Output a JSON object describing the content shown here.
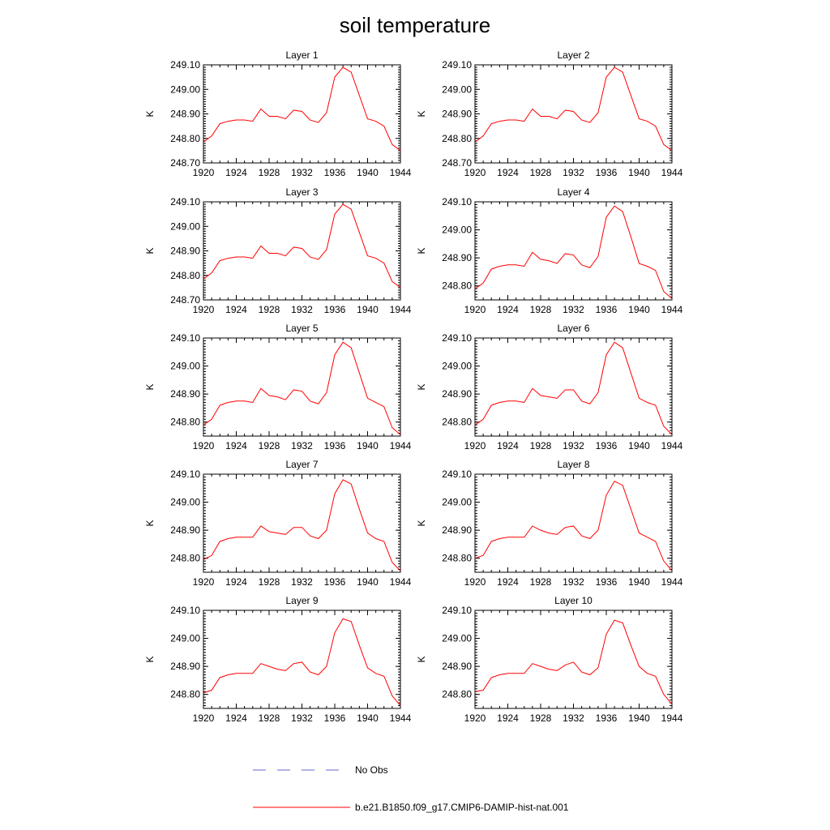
{
  "title": "soil temperature",
  "colors": {
    "model": "#ff0000",
    "obs": "#6666cc"
  },
  "legend": [
    {
      "label": "No Obs",
      "style": "dashed",
      "color": "#6666cc"
    },
    {
      "label": "b.e21.B1850.f09_g17.CMIP6-DAMIP-hist-nat.001",
      "style": "solid",
      "color": "#ff0000"
    }
  ],
  "chart_data": [
    {
      "type": "line",
      "title": "Layer 1",
      "xlabel": "",
      "ylabel": "K",
      "xlim": [
        1920,
        1944
      ],
      "ylim": [
        248.7,
        249.1
      ],
      "yticks": [
        "249.10",
        "249.00",
        "248.90",
        "248.80",
        "248.70"
      ],
      "xticks": [
        "1920",
        "1924",
        "1928",
        "1932",
        "1936",
        "1940",
        "1944"
      ],
      "series": [
        {
          "x": [
            1920,
            1921,
            1922,
            1923,
            1924,
            1925,
            1926,
            1927,
            1928,
            1929,
            1930,
            1931,
            1932,
            1933,
            1934,
            1935,
            1936,
            1937,
            1938,
            1939,
            1940,
            1941,
            1942,
            1943,
            1944
          ],
          "values": [
            248.785,
            248.81,
            248.86,
            248.87,
            248.875,
            248.875,
            248.87,
            248.92,
            248.89,
            248.89,
            248.88,
            248.915,
            248.91,
            248.875,
            248.865,
            248.905,
            249.05,
            249.09,
            249.07,
            248.975,
            248.88,
            248.87,
            248.85,
            248.775,
            248.75
          ]
        }
      ]
    },
    {
      "type": "line",
      "title": "Layer 2",
      "xlabel": "",
      "ylabel": "K",
      "xlim": [
        1920,
        1944
      ],
      "ylim": [
        248.7,
        249.1
      ],
      "yticks": [
        "249.10",
        "249.00",
        "248.90",
        "248.80",
        "248.70"
      ],
      "xticks": [
        "1920",
        "1924",
        "1928",
        "1932",
        "1936",
        "1940",
        "1944"
      ],
      "series": [
        {
          "x": [
            1920,
            1921,
            1922,
            1923,
            1924,
            1925,
            1926,
            1927,
            1928,
            1929,
            1930,
            1931,
            1932,
            1933,
            1934,
            1935,
            1936,
            1937,
            1938,
            1939,
            1940,
            1941,
            1942,
            1943,
            1944
          ],
          "values": [
            248.785,
            248.81,
            248.86,
            248.87,
            248.875,
            248.875,
            248.87,
            248.92,
            248.89,
            248.89,
            248.88,
            248.915,
            248.91,
            248.875,
            248.865,
            248.905,
            249.05,
            249.09,
            249.07,
            248.975,
            248.88,
            248.87,
            248.85,
            248.775,
            248.75
          ]
        }
      ]
    },
    {
      "type": "line",
      "title": "Layer 3",
      "xlabel": "",
      "ylabel": "K",
      "xlim": [
        1920,
        1944
      ],
      "ylim": [
        248.7,
        249.1
      ],
      "yticks": [
        "249.10",
        "249.00",
        "248.90",
        "248.80",
        "248.70"
      ],
      "xticks": [
        "1920",
        "1924",
        "1928",
        "1932",
        "1936",
        "1940",
        "1944"
      ],
      "series": [
        {
          "x": [
            1920,
            1921,
            1922,
            1923,
            1924,
            1925,
            1926,
            1927,
            1928,
            1929,
            1930,
            1931,
            1932,
            1933,
            1934,
            1935,
            1936,
            1937,
            1938,
            1939,
            1940,
            1941,
            1942,
            1943,
            1944
          ],
          "values": [
            248.785,
            248.81,
            248.86,
            248.87,
            248.875,
            248.875,
            248.87,
            248.92,
            248.89,
            248.89,
            248.88,
            248.915,
            248.91,
            248.875,
            248.865,
            248.905,
            249.05,
            249.09,
            249.07,
            248.975,
            248.88,
            248.87,
            248.85,
            248.775,
            248.75
          ]
        }
      ]
    },
    {
      "type": "line",
      "title": "Layer 4",
      "xlabel": "",
      "ylabel": "K",
      "xlim": [
        1920,
        1944
      ],
      "ylim": [
        248.75,
        249.1
      ],
      "yticks": [
        "249.10",
        "249.00",
        "248.90",
        "248.80"
      ],
      "xticks": [
        "1920",
        "1924",
        "1928",
        "1932",
        "1936",
        "1940",
        "1944"
      ],
      "series": [
        {
          "x": [
            1920,
            1921,
            1922,
            1923,
            1924,
            1925,
            1926,
            1927,
            1928,
            1929,
            1930,
            1931,
            1932,
            1933,
            1934,
            1935,
            1936,
            1937,
            1938,
            1939,
            1940,
            1941,
            1942,
            1943,
            1944
          ],
          "values": [
            248.79,
            248.81,
            248.86,
            248.87,
            248.875,
            248.875,
            248.87,
            248.92,
            248.895,
            248.89,
            248.88,
            248.915,
            248.91,
            248.875,
            248.865,
            248.905,
            249.045,
            249.085,
            249.065,
            248.975,
            248.88,
            248.87,
            248.855,
            248.78,
            248.755
          ]
        }
      ]
    },
    {
      "type": "line",
      "title": "Layer 5",
      "xlabel": "",
      "ylabel": "K",
      "xlim": [
        1920,
        1944
      ],
      "ylim": [
        248.75,
        249.1
      ],
      "yticks": [
        "249.10",
        "249.00",
        "248.90",
        "248.80"
      ],
      "xticks": [
        "1920",
        "1924",
        "1928",
        "1932",
        "1936",
        "1940",
        "1944"
      ],
      "series": [
        {
          "x": [
            1920,
            1921,
            1922,
            1923,
            1924,
            1925,
            1926,
            1927,
            1928,
            1929,
            1930,
            1931,
            1932,
            1933,
            1934,
            1935,
            1936,
            1937,
            1938,
            1939,
            1940,
            1941,
            1942,
            1943,
            1944
          ],
          "values": [
            248.79,
            248.81,
            248.86,
            248.87,
            248.875,
            248.875,
            248.87,
            248.92,
            248.895,
            248.89,
            248.88,
            248.915,
            248.91,
            248.875,
            248.865,
            248.905,
            249.04,
            249.085,
            249.065,
            248.975,
            248.885,
            248.87,
            248.855,
            248.78,
            248.755
          ]
        }
      ]
    },
    {
      "type": "line",
      "title": "Layer 6",
      "xlabel": "",
      "ylabel": "K",
      "xlim": [
        1920,
        1944
      ],
      "ylim": [
        248.75,
        249.1
      ],
      "yticks": [
        "249.10",
        "249.00",
        "248.90",
        "248.80"
      ],
      "xticks": [
        "1920",
        "1924",
        "1928",
        "1932",
        "1936",
        "1940",
        "1944"
      ],
      "series": [
        {
          "x": [
            1920,
            1921,
            1922,
            1923,
            1924,
            1925,
            1926,
            1927,
            1928,
            1929,
            1930,
            1931,
            1932,
            1933,
            1934,
            1935,
            1936,
            1937,
            1938,
            1939,
            1940,
            1941,
            1942,
            1943,
            1944
          ],
          "values": [
            248.79,
            248.81,
            248.86,
            248.87,
            248.875,
            248.875,
            248.87,
            248.92,
            248.895,
            248.89,
            248.885,
            248.915,
            248.915,
            248.875,
            248.865,
            248.905,
            249.04,
            249.085,
            249.065,
            248.975,
            248.885,
            248.87,
            248.86,
            248.785,
            248.755
          ]
        }
      ]
    },
    {
      "type": "line",
      "title": "Layer 7",
      "xlabel": "",
      "ylabel": "K",
      "xlim": [
        1920,
        1944
      ],
      "ylim": [
        248.75,
        249.1
      ],
      "yticks": [
        "249.10",
        "249.00",
        "248.90",
        "248.80"
      ],
      "xticks": [
        "1920",
        "1924",
        "1928",
        "1932",
        "1936",
        "1940",
        "1944"
      ],
      "series": [
        {
          "x": [
            1920,
            1921,
            1922,
            1923,
            1924,
            1925,
            1926,
            1927,
            1928,
            1929,
            1930,
            1931,
            1932,
            1933,
            1934,
            1935,
            1936,
            1937,
            1938,
            1939,
            1940,
            1941,
            1942,
            1943,
            1944
          ],
          "values": [
            248.795,
            248.81,
            248.86,
            248.87,
            248.875,
            248.875,
            248.875,
            248.915,
            248.895,
            248.89,
            248.885,
            248.91,
            248.91,
            248.88,
            248.87,
            248.9,
            249.03,
            249.08,
            249.065,
            248.975,
            248.89,
            248.87,
            248.86,
            248.785,
            248.755
          ]
        }
      ]
    },
    {
      "type": "line",
      "title": "Layer 8",
      "xlabel": "",
      "ylabel": "K",
      "xlim": [
        1920,
        1944
      ],
      "ylim": [
        248.75,
        249.1
      ],
      "yticks": [
        "249.10",
        "249.00",
        "248.90",
        "248.80"
      ],
      "xticks": [
        "1920",
        "1924",
        "1928",
        "1932",
        "1936",
        "1940",
        "1944"
      ],
      "series": [
        {
          "x": [
            1920,
            1921,
            1922,
            1923,
            1924,
            1925,
            1926,
            1927,
            1928,
            1929,
            1930,
            1931,
            1932,
            1933,
            1934,
            1935,
            1936,
            1937,
            1938,
            1939,
            1940,
            1941,
            1942,
            1943,
            1944
          ],
          "values": [
            248.8,
            248.81,
            248.86,
            248.87,
            248.875,
            248.875,
            248.875,
            248.915,
            248.9,
            248.89,
            248.885,
            248.91,
            248.915,
            248.88,
            248.87,
            248.9,
            249.025,
            249.075,
            249.06,
            248.975,
            248.89,
            248.875,
            248.86,
            248.79,
            248.755
          ]
        }
      ]
    },
    {
      "type": "line",
      "title": "Layer 9",
      "xlabel": "",
      "ylabel": "K",
      "xlim": [
        1920,
        1944
      ],
      "ylim": [
        248.75,
        249.1
      ],
      "yticks": [
        "249.10",
        "249.00",
        "248.90",
        "248.80"
      ],
      "xticks": [
        "1920",
        "1924",
        "1928",
        "1932",
        "1936",
        "1940",
        "1944"
      ],
      "series": [
        {
          "x": [
            1920,
            1921,
            1922,
            1923,
            1924,
            1925,
            1926,
            1927,
            1928,
            1929,
            1930,
            1931,
            1932,
            1933,
            1934,
            1935,
            1936,
            1937,
            1938,
            1939,
            1940,
            1941,
            1942,
            1943,
            1944
          ],
          "values": [
            248.805,
            248.815,
            248.86,
            248.87,
            248.875,
            248.875,
            248.875,
            248.91,
            248.9,
            248.89,
            248.885,
            248.91,
            248.915,
            248.88,
            248.87,
            248.9,
            249.02,
            249.07,
            249.06,
            248.975,
            248.895,
            248.875,
            248.865,
            248.795,
            248.76
          ]
        }
      ]
    },
    {
      "type": "line",
      "title": "Layer 10",
      "xlabel": "",
      "ylabel": "K",
      "xlim": [
        1920,
        1944
      ],
      "ylim": [
        248.75,
        249.1
      ],
      "yticks": [
        "249.10",
        "249.00",
        "248.90",
        "248.80"
      ],
      "xticks": [
        "1920",
        "1924",
        "1928",
        "1932",
        "1936",
        "1940",
        "1944"
      ],
      "series": [
        {
          "x": [
            1920,
            1921,
            1922,
            1923,
            1924,
            1925,
            1926,
            1927,
            1928,
            1929,
            1930,
            1931,
            1932,
            1933,
            1934,
            1935,
            1936,
            1937,
            1938,
            1939,
            1940,
            1941,
            1942,
            1943,
            1944
          ],
          "values": [
            248.81,
            248.815,
            248.86,
            248.87,
            248.875,
            248.875,
            248.875,
            248.91,
            248.9,
            248.89,
            248.885,
            248.905,
            248.915,
            248.88,
            248.87,
            248.895,
            249.015,
            249.065,
            249.055,
            248.975,
            248.9,
            248.875,
            248.865,
            248.8,
            248.765
          ]
        }
      ]
    }
  ]
}
